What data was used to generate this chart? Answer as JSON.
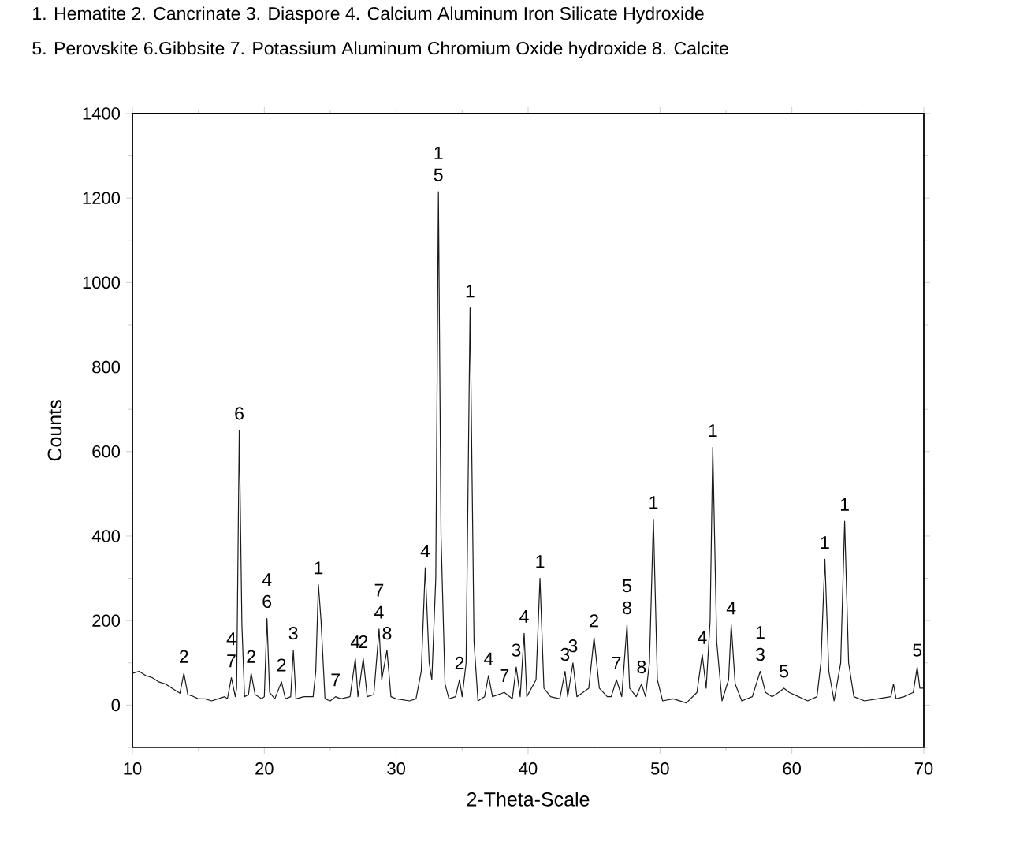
{
  "chart_data": {
    "type": "line",
    "title": "1. Hematite 2. Cancrinate 3. Diaspore 4. Calcium Aluminum Iron Silicate Hydroxide",
    "subtitle": "5. Perovskite 6.Gibbsite 7. Potassium Aluminum Chromium Oxide hydroxide 8. Calcite",
    "xlabel": "2-Theta-Scale",
    "ylabel": "Counts",
    "xlim": [
      10,
      70
    ],
    "ylim": [
      -100,
      1400
    ],
    "xticks": [
      10,
      {
        "value": 15,
        "label": null
      },
      20,
      {
        "value": 25,
        "label": null
      },
      30,
      {
        "value": 35,
        "label": null
      },
      40,
      {
        "value": 45,
        "label": null
      },
      50,
      {
        "value": 55,
        "label": null
      },
      60,
      {
        "value": 65,
        "label": null
      },
      70
    ],
    "yticks": [
      {
        "value": -100,
        "label": null
      },
      0,
      {
        "value": 100,
        "label": null
      },
      200,
      {
        "value": 300,
        "label": null
      },
      400,
      {
        "value": 500,
        "label": null
      },
      600,
      {
        "value": 700,
        "label": null
      },
      800,
      {
        "value": 900,
        "label": null
      },
      1000,
      {
        "value": 1100,
        "label": null
      },
      1200,
      {
        "value": 1300,
        "label": null
      },
      1400
    ],
    "series": [
      {
        "color": "#1a1a1a",
        "x": [
          10.0,
          10.5,
          11.0,
          11.5,
          12.0,
          12.5,
          13.0,
          13.6,
          13.9,
          14.2,
          14.5,
          15.0,
          15.5,
          16.0,
          16.5,
          17.0,
          17.2,
          17.5,
          17.8,
          17.9,
          18.1,
          18.3,
          18.5,
          18.8,
          19.0,
          19.3,
          19.8,
          20.0,
          20.2,
          20.4,
          20.8,
          21.3,
          21.6,
          22.0,
          22.2,
          22.4,
          23.0,
          23.7,
          23.9,
          24.1,
          24.3,
          24.6,
          25.0,
          25.4,
          25.8,
          26.5,
          26.9,
          27.1,
          27.5,
          27.8,
          28.3,
          28.7,
          28.9,
          29.3,
          29.6,
          30.0,
          31.0,
          31.5,
          31.9,
          32.2,
          32.5,
          32.7,
          33.0,
          33.2,
          33.4,
          33.7,
          34.0,
          34.5,
          34.8,
          35.0,
          35.3,
          35.6,
          35.9,
          36.2,
          36.7,
          37.0,
          37.3,
          38.2,
          38.8,
          39.1,
          39.4,
          39.7,
          39.9,
          40.6,
          40.9,
          41.2,
          41.7,
          42.4,
          42.8,
          43.0,
          43.4,
          43.7,
          44.6,
          45.0,
          45.4,
          46.0,
          46.3,
          46.7,
          47.1,
          47.5,
          47.7,
          48.2,
          48.6,
          48.9,
          49.2,
          49.5,
          49.8,
          50.2,
          51.0,
          52.0,
          52.8,
          53.2,
          53.5,
          53.8,
          54.0,
          54.3,
          54.7,
          55.2,
          55.4,
          55.7,
          56.2,
          57.0,
          57.6,
          58.0,
          58.5,
          59.0,
          59.4,
          59.8,
          60.5,
          61.2,
          61.9,
          62.2,
          62.5,
          62.8,
          63.2,
          63.7,
          64.0,
          64.3,
          64.7,
          65.5,
          66.5,
          67.5,
          67.7,
          67.9,
          68.5,
          69.2,
          69.5,
          69.7,
          70.0
        ],
        "values": [
          75,
          80,
          70,
          65,
          55,
          50,
          40,
          28,
          75,
          25,
          22,
          15,
          15,
          10,
          15,
          20,
          15,
          65,
          20,
          40,
          650,
          190,
          20,
          25,
          75,
          25,
          15,
          20,
          205,
          30,
          15,
          55,
          15,
          20,
          130,
          15,
          20,
          20,
          80,
          285,
          200,
          15,
          10,
          20,
          15,
          20,
          110,
          20,
          110,
          20,
          25,
          180,
          60,
          130,
          20,
          15,
          10,
          15,
          80,
          325,
          100,
          60,
          300,
          1215,
          400,
          50,
          15,
          20,
          60,
          20,
          100,
          940,
          150,
          10,
          20,
          70,
          20,
          30,
          15,
          90,
          20,
          170,
          20,
          60,
          300,
          40,
          20,
          15,
          80,
          20,
          100,
          20,
          40,
          160,
          40,
          20,
          20,
          60,
          20,
          190,
          40,
          20,
          50,
          20,
          100,
          440,
          60,
          10,
          15,
          5,
          30,
          120,
          40,
          200,
          610,
          150,
          10,
          60,
          190,
          50,
          10,
          20,
          80,
          30,
          20,
          30,
          40,
          30,
          20,
          10,
          20,
          100,
          345,
          80,
          10,
          100,
          435,
          100,
          20,
          10,
          15,
          20,
          50,
          15,
          20,
          30,
          90,
          40,
          40
        ]
      }
    ],
    "annotations": [
      {
        "text": "2",
        "x": 13.9,
        "y": 75
      },
      {
        "text": "7",
        "x": 17.5,
        "y": 65
      },
      {
        "text": "4",
        "x": 17.5,
        "y": 65
      },
      {
        "text": "6",
        "x": 18.1,
        "y": 650
      },
      {
        "text": "2",
        "x": 19.0,
        "y": 75
      },
      {
        "text": "6",
        "x": 20.2,
        "y": 205
      },
      {
        "text": "4",
        "x": 20.2,
        "y": 205
      },
      {
        "text": "2",
        "x": 21.3,
        "y": 55
      },
      {
        "text": "3",
        "x": 22.2,
        "y": 130
      },
      {
        "text": "1",
        "x": 24.1,
        "y": 285
      },
      {
        "text": "7",
        "x": 25.4,
        "y": 20
      },
      {
        "text": "4",
        "x": 26.9,
        "y": 110
      },
      {
        "text": "2",
        "x": 27.5,
        "y": 110
      },
      {
        "text": "4",
        "x": 28.7,
        "y": 180
      },
      {
        "text": "7",
        "x": 28.7,
        "y": 180
      },
      {
        "text": "8",
        "x": 29.3,
        "y": 130
      },
      {
        "text": "4",
        "x": 32.2,
        "y": 325
      },
      {
        "text": "5",
        "x": 33.2,
        "y": 1215
      },
      {
        "text": "1",
        "x": 33.2,
        "y": 1215
      },
      {
        "text": "2",
        "x": 34.8,
        "y": 60
      },
      {
        "text": "1",
        "x": 35.6,
        "y": 940
      },
      {
        "text": "4",
        "x": 37.0,
        "y": 70
      },
      {
        "text": "7",
        "x": 38.2,
        "y": 30
      },
      {
        "text": "3",
        "x": 39.1,
        "y": 90
      },
      {
        "text": "4",
        "x": 39.7,
        "y": 170
      },
      {
        "text": "1",
        "x": 40.9,
        "y": 300
      },
      {
        "text": "3",
        "x": 42.8,
        "y": 80
      },
      {
        "text": "3",
        "x": 43.4,
        "y": 100
      },
      {
        "text": "2",
        "x": 45.0,
        "y": 160
      },
      {
        "text": "7",
        "x": 46.7,
        "y": 60
      },
      {
        "text": "8",
        "x": 47.5,
        "y": 190
      },
      {
        "text": "5",
        "x": 47.5,
        "y": 190
      },
      {
        "text": "8",
        "x": 48.6,
        "y": 50
      },
      {
        "text": "1",
        "x": 49.5,
        "y": 440
      },
      {
        "text": "4",
        "x": 53.2,
        "y": 120
      },
      {
        "text": "1",
        "x": 54.0,
        "y": 610
      },
      {
        "text": "4",
        "x": 55.4,
        "y": 190
      },
      {
        "text": "3",
        "x": 57.6,
        "y": 80
      },
      {
        "text": "1",
        "x": 57.6,
        "y": 80
      },
      {
        "text": "5",
        "x": 59.4,
        "y": 40
      },
      {
        "text": "1",
        "x": 62.5,
        "y": 345
      },
      {
        "text": "1",
        "x": 64.0,
        "y": 435
      },
      {
        "text": "5",
        "x": 69.5,
        "y": 90
      }
    ]
  }
}
